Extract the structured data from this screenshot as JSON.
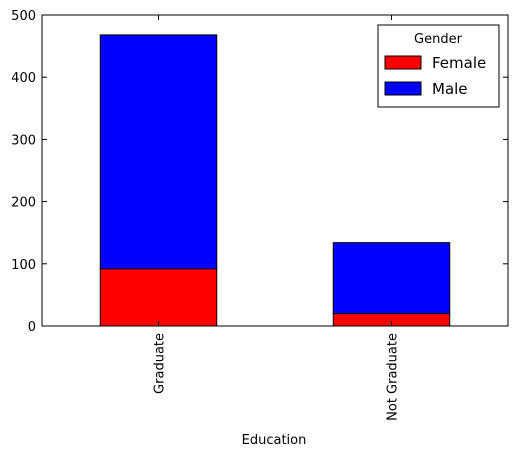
{
  "chart_data": {
    "type": "bar",
    "stacked": true,
    "categories": [
      "Graduate",
      "Not Graduate"
    ],
    "series": [
      {
        "name": "Female",
        "values": [
          92,
          20
        ],
        "color": "#ff0000"
      },
      {
        "name": "Male",
        "values": [
          376,
          114
        ],
        "color": "#0000ff"
      }
    ],
    "title": "",
    "xlabel": "Education",
    "ylabel": "",
    "ylim": [
      0,
      500
    ],
    "yticks": [
      0,
      100,
      200,
      300,
      400,
      500
    ],
    "grid": false,
    "legend": {
      "title": "Gender",
      "placement": "top-right"
    }
  }
}
